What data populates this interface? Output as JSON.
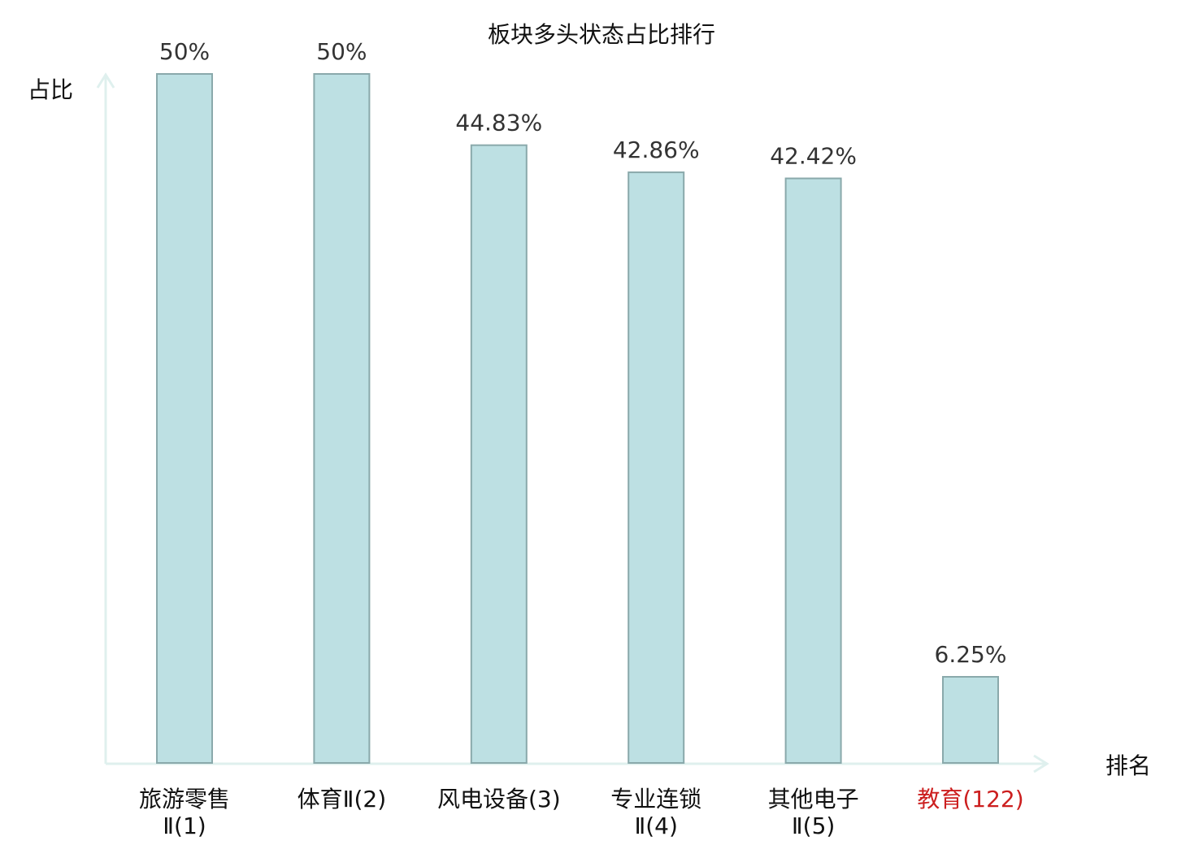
{
  "chart_data": {
    "type": "bar",
    "title": "板块多头状态占比排行",
    "ylabel": "占比",
    "xlabel": "排名",
    "ylim": [
      0,
      50
    ],
    "grid": false,
    "categories": [
      {
        "lines": [
          "旅游零售",
          "Ⅱ(1)"
        ],
        "highlight": false
      },
      {
        "lines": [
          "体育Ⅱ(2)"
        ],
        "highlight": false
      },
      {
        "lines": [
          "风电设备(3)"
        ],
        "highlight": false
      },
      {
        "lines": [
          "专业连锁",
          "Ⅱ(4)"
        ],
        "highlight": false
      },
      {
        "lines": [
          "其他电子",
          "Ⅱ(5)"
        ],
        "highlight": false
      },
      {
        "lines": [
          "教育(122)"
        ],
        "highlight": true
      }
    ],
    "values": [
      50,
      50,
      44.83,
      42.86,
      42.42,
      6.25
    ],
    "value_labels": [
      "50%",
      "50%",
      "44.83%",
      "42.86%",
      "42.42%",
      "6.25%"
    ],
    "colors": {
      "bar_fill": "#bde0e3",
      "bar_stroke": "#8aa9ab",
      "axis": "#dff0ee",
      "highlight_text": "#cc1f1f"
    }
  }
}
